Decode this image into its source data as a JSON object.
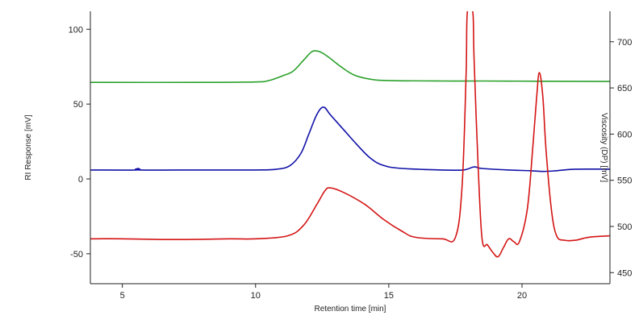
{
  "chart_data": {
    "type": "line",
    "xlabel": "Retention time [min]",
    "ylabel": "RI Response [mV]",
    "y2label": "Viscosity (DP) [mV]",
    "xlim": [
      3.8,
      23.3
    ],
    "ylim": [
      -70,
      112
    ],
    "y2lim": [
      438,
      733
    ],
    "xticks": [
      5,
      10,
      15,
      20
    ],
    "yticks": [
      -50,
      0,
      50,
      100
    ],
    "y2ticks": [
      450,
      500,
      550,
      600,
      650,
      700
    ],
    "grid": false,
    "legend": "none",
    "series": [
      {
        "axis": "right",
        "color": "#2aa02a",
        "points": [
          [
            3.8,
            656
          ],
          [
            8,
            656
          ],
          [
            10,
            656.5
          ],
          [
            10.5,
            658
          ],
          [
            11,
            663
          ],
          [
            11.4,
            668
          ],
          [
            11.8,
            680
          ],
          [
            12.1,
            689
          ],
          [
            12.3,
            690
          ],
          [
            12.5,
            688
          ],
          [
            12.8,
            682
          ],
          [
            13.2,
            673
          ],
          [
            13.7,
            664
          ],
          [
            14.3,
            659.5
          ],
          [
            15,
            658
          ],
          [
            17,
            657.5
          ],
          [
            18.5,
            657.5
          ],
          [
            23.3,
            657
          ]
        ]
      },
      {
        "axis": "left",
        "color": "#1010a8",
        "points": [
          [
            3.8,
            6
          ],
          [
            5.5,
            6
          ],
          [
            5.6,
            7
          ],
          [
            5.7,
            6
          ],
          [
            8,
            6
          ],
          [
            10,
            6
          ],
          [
            10.8,
            6.5
          ],
          [
            11.3,
            9
          ],
          [
            11.7,
            17
          ],
          [
            12,
            30
          ],
          [
            12.3,
            43
          ],
          [
            12.55,
            48
          ],
          [
            12.8,
            43
          ],
          [
            13.3,
            33
          ],
          [
            13.8,
            23
          ],
          [
            14.3,
            14
          ],
          [
            14.8,
            9
          ],
          [
            15.5,
            7
          ],
          [
            17,
            6
          ],
          [
            17.8,
            6
          ],
          [
            18.2,
            8
          ],
          [
            18.5,
            7
          ],
          [
            19.5,
            6
          ],
          [
            20.3,
            5.5
          ],
          [
            20.8,
            5
          ],
          [
            21.3,
            5.5
          ],
          [
            22,
            6.5
          ],
          [
            23.3,
            6.5
          ]
        ]
      },
      {
        "axis": "left",
        "color": "#d41414",
        "points": [
          [
            3.8,
            -40
          ],
          [
            5,
            -40
          ],
          [
            7,
            -40.5
          ],
          [
            9,
            -40
          ],
          [
            10,
            -40
          ],
          [
            11.2,
            -38
          ],
          [
            11.8,
            -31
          ],
          [
            12.3,
            -17
          ],
          [
            12.6,
            -8
          ],
          [
            12.8,
            -6
          ],
          [
            13.3,
            -9
          ],
          [
            14.1,
            -17
          ],
          [
            14.8,
            -27
          ],
          [
            15.5,
            -35
          ],
          [
            16,
            -39
          ],
          [
            17,
            -40
          ],
          [
            17.5,
            -39
          ],
          [
            17.75,
            -5
          ],
          [
            17.9,
            70
          ],
          [
            17.95,
            112
          ],
          [
            18.15,
            112
          ],
          [
            18.2,
            80
          ],
          [
            18.35,
            10
          ],
          [
            18.5,
            -40
          ],
          [
            18.7,
            -44
          ],
          [
            18.9,
            -49
          ],
          [
            19.1,
            -52
          ],
          [
            19.3,
            -46
          ],
          [
            19.5,
            -40
          ],
          [
            19.7,
            -42
          ],
          [
            19.9,
            -42
          ],
          [
            20.2,
            -20
          ],
          [
            20.4,
            20
          ],
          [
            20.55,
            55
          ],
          [
            20.65,
            71
          ],
          [
            20.78,
            55
          ],
          [
            20.9,
            20
          ],
          [
            21.1,
            -20
          ],
          [
            21.3,
            -38
          ],
          [
            21.6,
            -41
          ],
          [
            22,
            -41
          ],
          [
            22.5,
            -39
          ],
          [
            23.3,
            -38
          ]
        ]
      }
    ]
  }
}
